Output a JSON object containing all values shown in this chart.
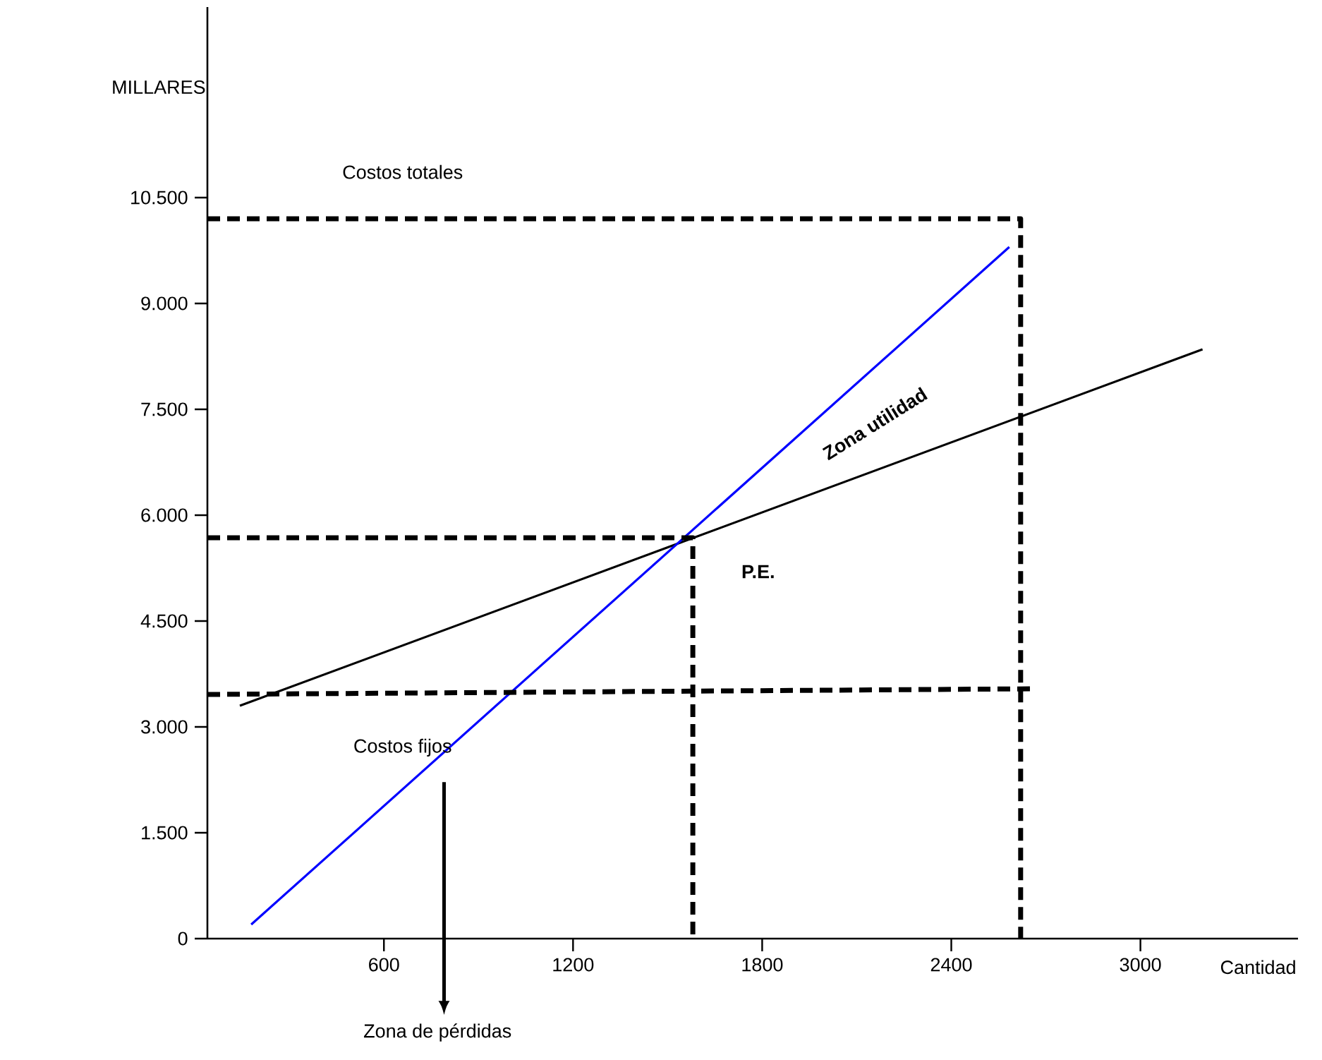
{
  "chart_data": {
    "type": "line",
    "ylabel": "MILLARES",
    "xlabel": "Cantidad",
    "xlim": [
      40,
      3500
    ],
    "ylim": [
      0,
      13200
    ],
    "xticks": [
      600,
      1200,
      1800,
      2400,
      3000
    ],
    "yticks": [
      {
        "value": 0,
        "label": "0"
      },
      {
        "value": 1500,
        "label": "1.500"
      },
      {
        "value": 3000,
        "label": "3.000"
      },
      {
        "value": 4500,
        "label": "4.500"
      },
      {
        "value": 6000,
        "label": "6.000"
      },
      {
        "value": 7500,
        "label": "7.500"
      },
      {
        "value": 9000,
        "label": "9.000"
      },
      {
        "value": 10500,
        "label": "10.500"
      }
    ],
    "series": [
      {
        "color": "#000000",
        "line_style": "solid",
        "x": [
          143,
          3197
        ],
        "values": [
          3300,
          8350
        ]
      },
      {
        "color": "#0000ff",
        "line_style": "solid",
        "x": [
          179,
          2584
        ],
        "values": [
          200,
          9800
        ]
      },
      {
        "color": "#000000",
        "line_style": "dashed",
        "x": [
          40,
          2664
        ],
        "values": [
          3460,
          3540
        ]
      },
      {
        "color": "#000000",
        "line_style": "dashed",
        "x": [
          40,
          2620,
          2620
        ],
        "values": [
          10200,
          10200,
          0
        ]
      },
      {
        "color": "#000000",
        "line_style": "dashed",
        "x": [
          40,
          1580,
          1580
        ],
        "values": [
          5680,
          5680,
          0
        ]
      }
    ],
    "annotations": [
      "Costos totales",
      "Zona utilidad",
      "P.E.",
      "Costos fijos",
      "Zona de pérdidas"
    ]
  }
}
